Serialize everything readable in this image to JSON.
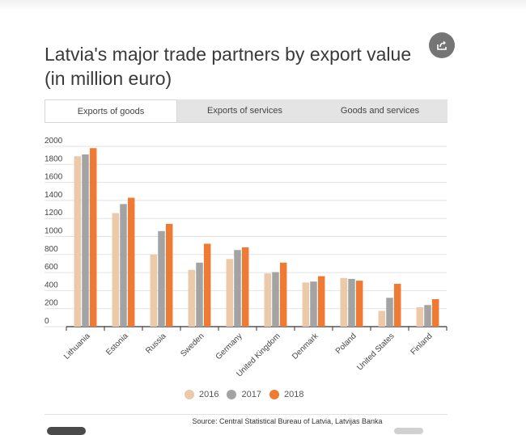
{
  "title": "Latvia's major trade partners by export value (in million euro)",
  "share": {
    "icon": "share-icon"
  },
  "tabs": [
    {
      "label": "Exports of goods",
      "active": true
    },
    {
      "label": "Exports of services",
      "active": false
    },
    {
      "label": "Goods and services",
      "active": false
    }
  ],
  "colors": {
    "2016": "#ecc9a8",
    "2017": "#a3a3a3",
    "2018": "#ee7a33"
  },
  "chart_data": {
    "type": "bar",
    "categories": [
      "Lithuania",
      "Estonia",
      "Russia",
      "Sweden",
      "Germany",
      "United Kingdom",
      "Denmark",
      "Poland",
      "United States",
      "Finland"
    ],
    "series": [
      {
        "name": "2016",
        "values": [
          1890,
          1260,
          800,
          630,
          750,
          590,
          490,
          540,
          175,
          215
        ]
      },
      {
        "name": "2017",
        "values": [
          1910,
          1360,
          1060,
          710,
          850,
          605,
          500,
          530,
          320,
          240
        ]
      },
      {
        "name": "2018",
        "values": [
          1980,
          1430,
          1140,
          920,
          880,
          710,
          560,
          510,
          475,
          305
        ]
      }
    ],
    "y_ticks": [
      "0",
      "200",
      "400",
      "600",
      "800",
      "1000",
      "1200",
      "1400",
      "1600",
      "1800",
      "2000"
    ],
    "ylim": [
      0,
      2000
    ],
    "grid": true,
    "legend": "bottom-center"
  },
  "legend": [
    {
      "label": "2016",
      "color": "#ecc9a8"
    },
    {
      "label": "2017",
      "color": "#a3a3a3"
    },
    {
      "label": "2018",
      "color": "#ee7a33"
    }
  ],
  "source": "Source: Central Statistical Bureau of Latvia, Latvijas Banka"
}
